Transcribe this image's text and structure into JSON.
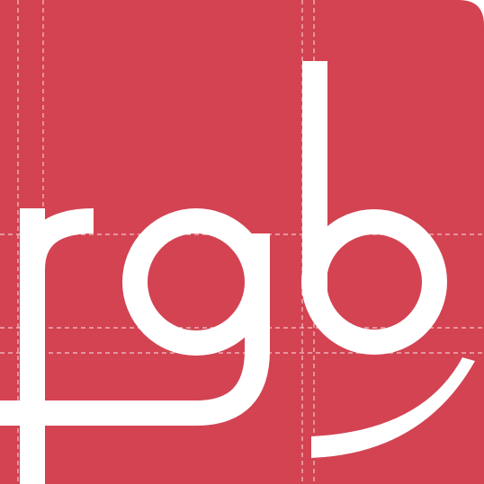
{
  "logo": {
    "text": "rgb",
    "background_color": "#d34352",
    "glyph_color": "#ffffff",
    "guide_color": "#f3c5ca"
  }
}
